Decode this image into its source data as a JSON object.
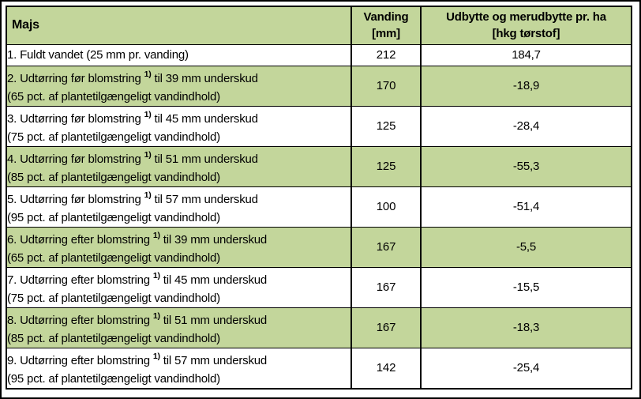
{
  "colors": {
    "row_green": "#c3d69b",
    "border": "#000000",
    "background": "#ffffff"
  },
  "table": {
    "header": {
      "col1": "Majs",
      "col2_line1": "Vanding",
      "col2_line2": "[mm]",
      "col3_line1": "Udbytte og merudbytte pr. ha",
      "col3_line2": "[hkg tørstof]"
    },
    "rows": [
      {
        "pre": "1. Fuldt vandet (25 mm pr. vanding)",
        "sup": "",
        "post": "",
        "line2": "",
        "vanding": "212",
        "udbytte": "184,7"
      },
      {
        "pre": "2. Udtørring før blomstring ",
        "sup": "1)",
        "post": " til 39 mm underskud",
        "line2": "(65 pct. af plantetilgængeligt vandindhold)",
        "vanding": "170",
        "udbytte": "-18,9"
      },
      {
        "pre": "3. Udtørring før blomstring ",
        "sup": "1)",
        "post": " til 45 mm underskud",
        "line2": "(75 pct. af plantetilgængeligt vandindhold)",
        "vanding": "125",
        "udbytte": "-28,4"
      },
      {
        "pre": "4. Udtørring før blomstring ",
        "sup": "1)",
        "post": " til 51 mm underskud",
        "line2": "(85 pct. af plantetilgængeligt vandindhold)",
        "vanding": "125",
        "udbytte": "-55,3"
      },
      {
        "pre": "5. Udtørring før blomstring ",
        "sup": "1)",
        "post": " til 57 mm underskud",
        "line2": "(95 pct. af plantetilgængeligt vandindhold)",
        "vanding": "100",
        "udbytte": "-51,4"
      },
      {
        "pre": "6. Udtørring efter blomstring ",
        "sup": "1)",
        "post": " til 39 mm underskud",
        "line2": "(65 pct. af plantetilgængeligt vandindhold)",
        "vanding": "167",
        "udbytte": "-5,5"
      },
      {
        "pre": "7. Udtørring efter blomstring ",
        "sup": "1)",
        "post": " til 45 mm underskud",
        "line2": "(75 pct. af plantetilgængeligt vandindhold)",
        "vanding": "167",
        "udbytte": "-15,5"
      },
      {
        "pre": "8. Udtørring efter blomstring ",
        "sup": "1)",
        "post": " til 51 mm underskud",
        "line2": "(85 pct. af plantetilgængeligt vandindhold)",
        "vanding": "167",
        "udbytte": "-18,3"
      },
      {
        "pre": "9. Udtørring efter blomstring ",
        "sup": "1)",
        "post": " til 57 mm underskud",
        "line2": "(95 pct. af plantetilgængeligt vandindhold)",
        "vanding": "142",
        "udbytte": "-25,4"
      }
    ]
  },
  "chart_data": {
    "type": "table",
    "columns": [
      "Majs",
      "Vanding [mm]",
      "Udbytte og merudbytte pr. ha [hkg tørstof]"
    ],
    "rows": [
      [
        "1. Fuldt vandet (25 mm pr. vanding)",
        212,
        184.7
      ],
      [
        "2. Udtørring før blomstring 1) til 39 mm underskud (65 pct. af plantetilgængeligt vandindhold)",
        170,
        -18.9
      ],
      [
        "3. Udtørring før blomstring 1) til 45 mm underskud (75 pct. af plantetilgængeligt vandindhold)",
        125,
        -28.4
      ],
      [
        "4. Udtørring før blomstring 1) til 51 mm underskud (85 pct. af plantetilgængeligt vandindhold)",
        125,
        -55.3
      ],
      [
        "5. Udtørring før blomstring 1) til 57 mm underskud (95 pct. af plantetilgængeligt vandindhold)",
        100,
        -51.4
      ],
      [
        "6. Udtørring efter blomstring 1) til 39 mm underskud (65 pct. af plantetilgængeligt vandindhold)",
        167,
        -5.5
      ],
      [
        "7. Udtørring efter blomstring 1) til 45 mm underskud (75 pct. af plantetilgængeligt vandindhold)",
        167,
        -15.5
      ],
      [
        "8. Udtørring efter blomstring 1) til 51 mm underskud (85 pct. af plantetilgængeligt vandindhold)",
        167,
        -18.3
      ],
      [
        "9. Udtørring efter blomstring 1) til 57 mm underskud (95 pct. af plantetilgængeligt vandindhold)",
        142,
        -25.4
      ]
    ]
  }
}
